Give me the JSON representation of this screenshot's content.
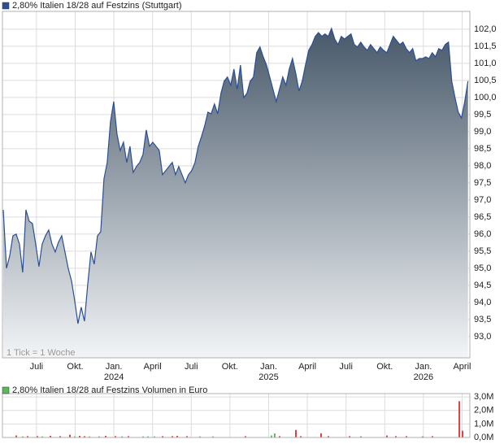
{
  "chart_data": [
    {
      "type": "area",
      "title": "2,80% Italien 18/28 auf Festzins (Stuttgart)",
      "annotation": "1 Tick = 1 Woche",
      "color": "#2a4f94",
      "fill_top": "#48596a",
      "fill_bottom": "#f2f4f6",
      "grid": true,
      "xlim": [
        2023.28,
        2026.3
      ],
      "ylim": [
        92.38,
        102.52
      ],
      "xticks": [
        {
          "value": 2023.5,
          "label": "Juli"
        },
        {
          "value": 2023.75,
          "label": "Okt."
        },
        {
          "value": 2024,
          "label": "Jan."
        },
        {
          "value": 2024.25,
          "label": "April"
        },
        {
          "value": 2024.5,
          "label": "Juli"
        },
        {
          "value": 2024.75,
          "label": "Okt."
        },
        {
          "value": 2025,
          "label": "Jan."
        },
        {
          "value": 2025.25,
          "label": "April"
        },
        {
          "value": 2025.5,
          "label": "Juli"
        },
        {
          "value": 2025.75,
          "label": "Okt."
        },
        {
          "value": 2026,
          "label": "Jan."
        },
        {
          "value": 2026.25,
          "label": "April"
        }
      ],
      "x_year_labels": [
        2024,
        2025,
        2026
      ],
      "yticks": [
        {
          "value": 93,
          "label": "93,0"
        },
        {
          "value": 93.5,
          "label": "93,5"
        },
        {
          "value": 94,
          "label": "94,0"
        },
        {
          "value": 94.5,
          "label": "94,5"
        },
        {
          "value": 95,
          "label": "95,0"
        },
        {
          "value": 95.5,
          "label": "95,5"
        },
        {
          "value": 96,
          "label": "96,0"
        },
        {
          "value": 96.5,
          "label": "96,5"
        },
        {
          "value": 97,
          "label": "97,0"
        },
        {
          "value": 97.5,
          "label": "97,5"
        },
        {
          "value": 98,
          "label": "98,0"
        },
        {
          "value": 98.5,
          "label": "98,5"
        },
        {
          "value": 99,
          "label": "99,0"
        },
        {
          "value": 99.5,
          "label": "99,5"
        },
        {
          "value": 100,
          "label": "100,0"
        },
        {
          "value": 100.5,
          "label": "100,5"
        },
        {
          "value": 101,
          "label": "101,0"
        },
        {
          "value": 101.5,
          "label": "101,5"
        },
        {
          "value": 102,
          "label": "102,0"
        }
      ],
      "x": [
        2023.285,
        2023.306,
        2023.327,
        2023.348,
        2023.369,
        2023.39,
        2023.411,
        2023.432,
        2023.453,
        2023.474,
        2023.495,
        2023.516,
        2023.537,
        2023.558,
        2023.579,
        2023.6,
        2023.621,
        2023.642,
        2023.663,
        2023.684,
        2023.705,
        2023.726,
        2023.747,
        2023.768,
        2023.789,
        2023.81,
        2023.831,
        2023.852,
        2023.873,
        2023.894,
        2023.915,
        2023.936,
        2023.957,
        2023.978,
        2023.999,
        2024.02,
        2024.041,
        2024.062,
        2024.083,
        2024.104,
        2024.125,
        2024.146,
        2024.167,
        2024.188,
        2024.209,
        2024.23,
        2024.251,
        2024.272,
        2024.293,
        2024.314,
        2024.335,
        2024.356,
        2024.377,
        2024.398,
        2024.419,
        2024.44,
        2024.461,
        2024.482,
        2024.503,
        2024.524,
        2024.545,
        2024.566,
        2024.587,
        2024.608,
        2024.629,
        2024.65,
        2024.671,
        2024.692,
        2024.713,
        2024.734,
        2024.755,
        2024.776,
        2024.797,
        2024.818,
        2024.839,
        2024.86,
        2024.881,
        2024.902,
        2024.923,
        2024.944,
        2024.965,
        2024.986,
        2025.007,
        2025.028,
        2025.049,
        2025.07,
        2025.091,
        2025.112,
        2025.133,
        2025.154,
        2025.175,
        2025.196,
        2025.217,
        2025.238,
        2025.259,
        2025.28,
        2025.301,
        2025.322,
        2025.343,
        2025.364,
        2025.385,
        2025.406,
        2025.427,
        2025.448,
        2025.469,
        2025.49,
        2025.511,
        2025.532,
        2025.553,
        2025.574,
        2025.595,
        2025.616,
        2025.637,
        2025.658,
        2025.679,
        2025.7,
        2025.721,
        2025.742,
        2025.763,
        2025.784,
        2025.805,
        2025.826,
        2025.847,
        2025.868,
        2025.889,
        2025.91,
        2025.931,
        2025.952,
        2025.973,
        2025.994,
        2026.015,
        2026.036,
        2026.057,
        2026.078,
        2026.099,
        2026.12,
        2026.141,
        2026.162,
        2026.183,
        2026.204,
        2026.225,
        2026.246,
        2026.267,
        2026.288
      ],
      "values": [
        96.71,
        95.0,
        95.36,
        95.95,
        96.0,
        95.71,
        94.88,
        96.71,
        96.38,
        96.31,
        95.71,
        95.05,
        95.71,
        95.95,
        96.12,
        95.71,
        95.48,
        95.76,
        95.95,
        95.48,
        95.0,
        94.64,
        94.05,
        93.38,
        93.86,
        93.45,
        94.52,
        95.48,
        95.12,
        95.95,
        96.07,
        97.62,
        98.1,
        99.29,
        99.88,
        98.93,
        98.45,
        98.69,
        98.1,
        98.57,
        97.81,
        97.98,
        98.1,
        98.33,
        99.05,
        98.57,
        98.69,
        98.57,
        98.45,
        97.74,
        97.86,
        97.98,
        98.1,
        97.74,
        97.98,
        97.74,
        97.5,
        97.74,
        97.86,
        98.1,
        98.57,
        98.86,
        99.17,
        99.57,
        99.52,
        99.81,
        99.52,
        100.12,
        100.48,
        100.6,
        100.36,
        100.83,
        100.24,
        100.95,
        100.0,
        100.12,
        100.48,
        100.6,
        101.31,
        101.48,
        101.19,
        100.95,
        100.6,
        100.24,
        99.88,
        100.24,
        100.6,
        100.36,
        100.83,
        101.14,
        100.71,
        100.19,
        100.48,
        100.95,
        101.38,
        101.55,
        101.79,
        101.9,
        101.79,
        101.86,
        101.79,
        102.02,
        101.71,
        101.55,
        101.79,
        101.71,
        101.79,
        101.86,
        101.55,
        101.48,
        101.62,
        101.48,
        101.38,
        101.55,
        101.43,
        101.31,
        101.48,
        101.38,
        101.31,
        101.55,
        101.79,
        101.67,
        101.55,
        101.62,
        101.43,
        101.31,
        101.43,
        101.07,
        101.14,
        101.14,
        101.19,
        101.14,
        101.31,
        101.19,
        101.43,
        101.38,
        101.55,
        101.62,
        100.48,
        100.0,
        99.57,
        99.4,
        99.88,
        100.48
      ]
    },
    {
      "type": "bar",
      "title": "2,80% Italien 18/28 auf Festzins Volumen in Euro",
      "color": "#5cb85c",
      "grid": true,
      "xlim": [
        2023.28,
        2026.3
      ],
      "ylim": [
        0,
        3250000
      ],
      "yticks": [
        {
          "value": 0,
          "label": "0,0M"
        },
        {
          "value": 1000000,
          "label": "1,0M"
        },
        {
          "value": 2000000,
          "label": "2,0M"
        },
        {
          "value": 3000000,
          "label": "3,0M"
        }
      ],
      "x": [
        2023.369,
        2023.411,
        2023.443,
        2023.506,
        2023.537,
        2023.59,
        2023.653,
        2023.716,
        2023.747,
        2023.779,
        2023.81,
        2023.842,
        2023.905,
        2023.947,
        2024.01,
        2024.052,
        2024.094,
        2024.189,
        2024.22,
        2024.262,
        2024.315,
        2024.378,
        2024.409,
        2024.472,
        2024.556,
        2024.64,
        2024.85,
        2025.018,
        2025.039,
        2025.071,
        2025.176,
        2025.208,
        2025.339,
        2025.386,
        2025.523,
        2025.596,
        2025.764,
        2025.822,
        2025.89,
        2025.995,
        2026.058,
        2026.232,
        2026.253
      ],
      "values": [
        150000,
        80000,
        100000,
        100000,
        80000,
        120000,
        100000,
        200000,
        80000,
        120000,
        100000,
        80000,
        80000,
        120000,
        100000,
        80000,
        100000,
        80000,
        80000,
        80000,
        100000,
        100000,
        120000,
        100000,
        80000,
        80000,
        100000,
        150000,
        300000,
        100000,
        560000,
        100000,
        310000,
        100000,
        100000,
        80000,
        150000,
        100000,
        100000,
        80000,
        100000,
        2690000,
        500000
      ],
      "colors": [
        "#e04040",
        "#5cb85c",
        "#e04040",
        "#e04040",
        "#5cb85c",
        "#e04040",
        "#e04040",
        "#e04040",
        "#5cb85c",
        "#e04040",
        "#e04040",
        "#5cb85c",
        "#5cb85c",
        "#e04040",
        "#e04040",
        "#5cb85c",
        "#e04040",
        "#5cb85c",
        "#5cb85c",
        "#5cb85c",
        "#e04040",
        "#e04040",
        "#e04040",
        "#e04040",
        "#5cb85c",
        "#5cb85c",
        "#e04040",
        "#5cb85c",
        "#5cb85c",
        "#e04040",
        "#e04040",
        "#e04040",
        "#e04040",
        "#e04040",
        "#e04040",
        "#e04040",
        "#e04040",
        "#e04040",
        "#e04040",
        "#e04040",
        "#e04040",
        "#e04040",
        "#e04040"
      ]
    }
  ]
}
